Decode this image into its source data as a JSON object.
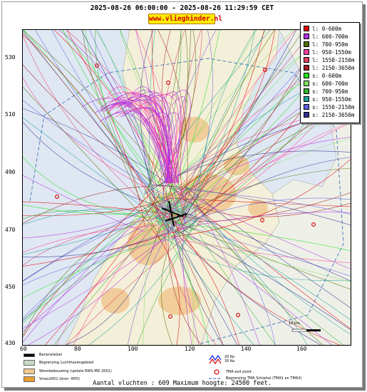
{
  "header": {
    "title": "2025-08-26 06:00:00 - 2025-08-26 11:29:59 CET",
    "site_label": "www.vlieghinder.nl"
  },
  "axes": {
    "y_ticks": [
      "530",
      "510",
      "490",
      "470",
      "450",
      "430"
    ],
    "x_ticks": [
      "60",
      "80",
      "100",
      "120",
      "140",
      "160"
    ]
  },
  "legend": {
    "items": [
      {
        "label": "l: 0-600m",
        "color": "#e00000"
      },
      {
        "label": "l: 600-700m",
        "color": "#b030e0"
      },
      {
        "label": "l: 700-950m",
        "color": "#507000"
      },
      {
        "label": "l: 950-1550m",
        "color": "#ff40a0"
      },
      {
        "label": "l: 1550-2150m",
        "color": "#e04060"
      },
      {
        "label": "l: 2150-3650m",
        "color": "#a02020"
      },
      {
        "label": "s: 0-600m",
        "color": "#20e020"
      },
      {
        "label": "s: 600-700m",
        "color": "#80e060"
      },
      {
        "label": "s: 700-950m",
        "color": "#30b030"
      },
      {
        "label": "s: 950-1550m",
        "color": "#20a0a0"
      },
      {
        "label": "s: 1550-2150m",
        "color": "#6060e0"
      },
      {
        "label": "s: 2150-3650m",
        "color": "#303090"
      }
    ]
  },
  "map_legend": {
    "runway": "Banenstelsel",
    "airport_boundary": "Begrenzing Luchthavengebied",
    "housing": "Woonbebouwing (update RWS-MD 2001)",
    "vinex": "Vinex2001 (bron: RPD)",
    "noise_a": "20 Ke",
    "noise_b": "35 Ke",
    "tma_exit": "TMA exit point",
    "tma_boundary": "Begrenzing TMA Schiphol  (TMA1 en TMA3)"
  },
  "scale_label": "10 km",
  "footer": "Aantal vluchten : 609 Maximum hoogte: 24500 feet."
}
